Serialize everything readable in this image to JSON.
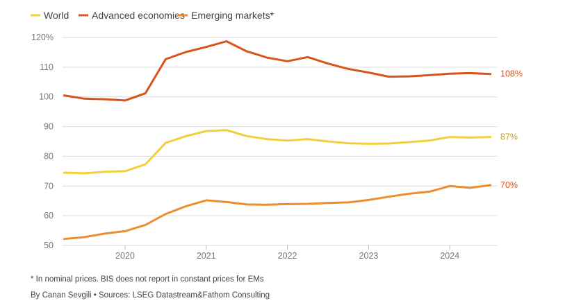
{
  "chart_data": {
    "type": "line",
    "title": "",
    "xlabel": "",
    "ylabel": "",
    "x": [
      2019.25,
      2019.5,
      2019.75,
      2020.0,
      2020.25,
      2020.5,
      2020.75,
      2021.0,
      2021.25,
      2021.5,
      2021.75,
      2022.0,
      2022.25,
      2022.5,
      2022.75,
      2023.0,
      2023.25,
      2023.5,
      2023.75,
      2024.0,
      2024.25,
      2024.5
    ],
    "xlim": [
      2019.23,
      2024.58
    ],
    "xticks": [
      2020,
      2021,
      2022,
      2023,
      2024
    ],
    "xtick_labels": [
      "2020",
      "2021",
      "2022",
      "2023",
      "2024"
    ],
    "ylim": [
      50,
      120
    ],
    "yticks": [
      50,
      60,
      70,
      80,
      90,
      100,
      110,
      120
    ],
    "ytick_labels": [
      "50",
      "60",
      "70",
      "80",
      "90",
      "100",
      "110",
      "120%"
    ],
    "grid": "horizontal",
    "legend_position": "top-left",
    "series": [
      {
        "name": "World",
        "color": "#f2cf3a",
        "values": [
          74.5,
          74.3,
          74.8,
          75.0,
          77.3,
          84.5,
          86.8,
          88.5,
          88.8,
          86.8,
          85.8,
          85.3,
          85.8,
          85.0,
          84.4,
          84.2,
          84.3,
          84.8,
          85.3,
          86.5,
          86.3,
          86.5
        ],
        "end_label": "87%"
      },
      {
        "name": "Advanced economies",
        "color": "#d8541b",
        "values": [
          100.5,
          99.4,
          99.2,
          98.8,
          101.2,
          112.7,
          115.1,
          116.8,
          118.7,
          115.3,
          113.2,
          112.0,
          113.4,
          111.2,
          109.4,
          108.2,
          106.8,
          106.9,
          107.3,
          107.8,
          108.0,
          107.7
        ],
        "end_label": "108%"
      },
      {
        "name": "Emerging markets*",
        "color": "#ee8d2e",
        "values": [
          52.2,
          52.8,
          54.0,
          54.8,
          56.9,
          60.6,
          63.2,
          65.2,
          64.6,
          63.8,
          63.7,
          63.9,
          64.0,
          64.3,
          64.5,
          65.3,
          66.4,
          67.4,
          68.1,
          70.0,
          69.4,
          70.3
        ],
        "end_label": "70%"
      }
    ]
  },
  "footnote": "* In nominal prices. BIS does not report in constant prices for EMs",
  "credit": "By Canan Sevgili • Sources: LSEG Datastream&Fathom Consulting"
}
